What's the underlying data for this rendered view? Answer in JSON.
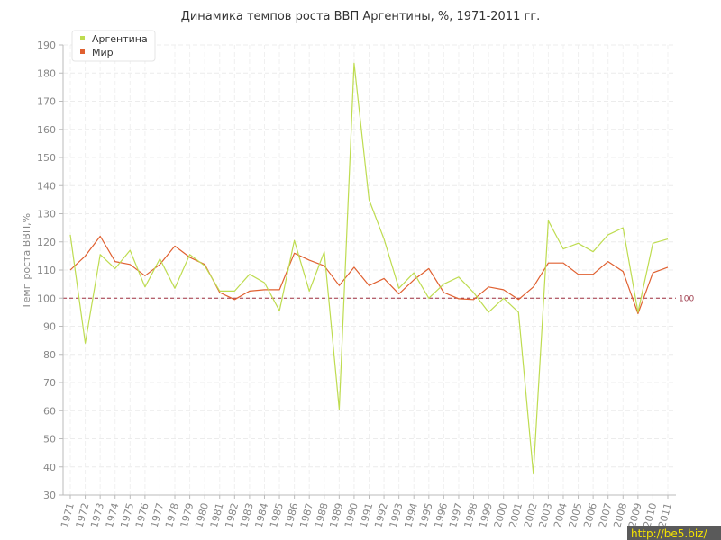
{
  "chart_data": {
    "type": "line",
    "title": "Динамика темпов роста ВВП Аргентины, %, 1971-2011 гг.",
    "xlabel": "",
    "ylabel": "Темп роста ВВП,%",
    "ylim": [
      30,
      190
    ],
    "yticks": [
      30,
      40,
      50,
      60,
      70,
      80,
      90,
      100,
      110,
      120,
      130,
      140,
      150,
      160,
      170,
      180,
      190
    ],
    "categories": [
      "1971",
      "1972",
      "1973",
      "1974",
      "1975",
      "1976",
      "1977",
      "1978",
      "1979",
      "1980",
      "1981",
      "1982",
      "1983",
      "1984",
      "1985",
      "1986",
      "1987",
      "1988",
      "1989",
      "1990",
      "1991",
      "1992",
      "1993",
      "1994",
      "1995",
      "1996",
      "1997",
      "1998",
      "1999",
      "2000",
      "2001",
      "2002",
      "2003",
      "2004",
      "2005",
      "2006",
      "2007",
      "2008",
      "2009",
      "2010",
      "2011"
    ],
    "series": [
      {
        "name": "Аргентина",
        "color": "#bedc50",
        "values": [
          122.5,
          84,
          115.5,
          110.5,
          117,
          104,
          114,
          103.5,
          115.5,
          111.5,
          102.5,
          102.5,
          108.5,
          105.5,
          95.5,
          120.5,
          102.5,
          116.5,
          60.5,
          183.5,
          135,
          121,
          103.5,
          109,
          100,
          105,
          107.5,
          102,
          95,
          100,
          95,
          37.5,
          127.5,
          117.5,
          119.5,
          116.5,
          122.5,
          125,
          95,
          119.5,
          121
        ]
      },
      {
        "name": "Мир",
        "color": "#e06030",
        "values": [
          110,
          115,
          122,
          113,
          112,
          108,
          112,
          118.5,
          114.5,
          112,
          102,
          99.5,
          102.5,
          103,
          103,
          116,
          113.5,
          111.5,
          104.5,
          111,
          104.5,
          107,
          101.5,
          106.5,
          110.5,
          102,
          99.8,
          99.5,
          104,
          103,
          99.5,
          104,
          112.5,
          112.5,
          108.5,
          108.5,
          113,
          109.5,
          94.5,
          109,
          111
        ]
      }
    ],
    "reference_line": {
      "value": 100,
      "label": "100",
      "color": "#a03040"
    },
    "grid": true,
    "legend": "top-left"
  },
  "watermark": "http://be5.biz/"
}
